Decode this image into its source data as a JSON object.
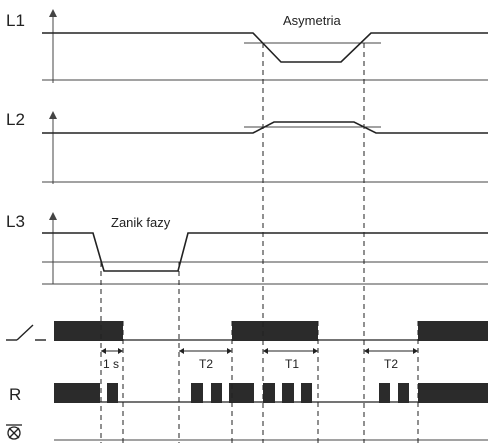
{
  "channels": {
    "l1": "L1",
    "l2": "L2",
    "l3": "L3",
    "relay": "R"
  },
  "annotations": {
    "asymmetry": "Asymetria",
    "phase_loss": "Zanik fazy"
  },
  "intervals": {
    "one_second": "1 s",
    "t2_first": "T2",
    "t1": "T1",
    "t2_second": "T2"
  },
  "icons": {
    "switch": "switch-symbol-icon",
    "no_supply": "crossed-circle-icon"
  },
  "colors": {
    "line": "#222222",
    "fill": "#2b2b2b",
    "grid": "#444444"
  }
}
